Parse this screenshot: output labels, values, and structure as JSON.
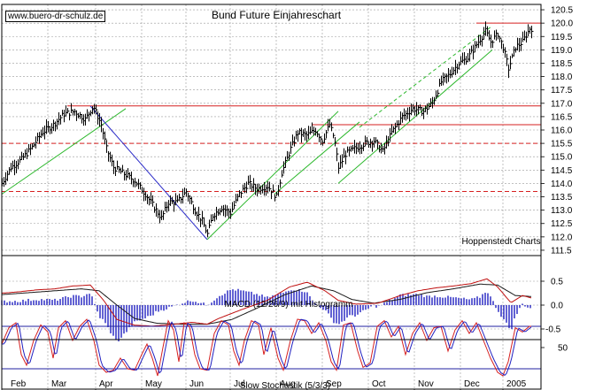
{
  "watermark": "www.buero-dr-schulz.de",
  "colors": {
    "price": "#000000",
    "trendline": "#2db82d",
    "downtrend": "#2a2ac8",
    "resistance": "#d62020",
    "macd": "#c01010",
    "signal": "#1a1a1a",
    "histogram": "#2020c0",
    "stoch_k": "#d62020",
    "stoch_d": "#2020c0",
    "band": "#2020a0",
    "grid": "#9a9a9a"
  },
  "chart_data": [
    {
      "type": "line",
      "title": "Bund Future Einjahreschart",
      "annotation": "Hoppenstedt Charts",
      "xlabel": "",
      "ylabel": "",
      "x_labels": [
        "Feb",
        "Mar",
        "Apr",
        "May",
        "Jun",
        "Jul",
        "Aug",
        "Sep",
        "Oct",
        "Nov",
        "Dec",
        "2005"
      ],
      "y_ticks": [
        111.5,
        112.0,
        112.5,
        113.0,
        113.5,
        114.0,
        114.5,
        115.0,
        115.5,
        116.0,
        116.5,
        117.0,
        117.5,
        118.0,
        118.5,
        119.0,
        119.5,
        120.0,
        120.5
      ],
      "ylim": [
        111.3,
        120.7
      ],
      "axis_side": "right",
      "grid": true,
      "price_anchors": [
        [
          0,
          114.0
        ],
        [
          10,
          114.6
        ],
        [
          22,
          114.9
        ],
        [
          35,
          115.4
        ],
        [
          45,
          115.9
        ],
        [
          58,
          116.2
        ],
        [
          70,
          116.6
        ],
        [
          82,
          116.7
        ],
        [
          94,
          116.4
        ],
        [
          103,
          116.9
        ],
        [
          112,
          116.2
        ],
        [
          118,
          115.3
        ],
        [
          126,
          114.6
        ],
        [
          136,
          114.4
        ],
        [
          150,
          114.1
        ],
        [
          162,
          113.6
        ],
        [
          172,
          113.1
        ],
        [
          180,
          112.7
        ],
        [
          188,
          113.3
        ],
        [
          198,
          113.3
        ],
        [
          208,
          113.7
        ],
        [
          218,
          113.0
        ],
        [
          226,
          112.6
        ],
        [
          232,
          112.1
        ],
        [
          238,
          112.8
        ],
        [
          248,
          113.1
        ],
        [
          258,
          112.9
        ],
        [
          268,
          113.6
        ],
        [
          278,
          114.0
        ],
        [
          288,
          113.8
        ],
        [
          300,
          113.9
        ],
        [
          310,
          113.5
        ],
        [
          316,
          114.4
        ],
        [
          326,
          115.3
        ],
        [
          334,
          115.9
        ],
        [
          344,
          115.8
        ],
        [
          354,
          116.0
        ],
        [
          362,
          115.6
        ],
        [
          370,
          116.2
        ],
        [
          375,
          115.7
        ],
        [
          380,
          114.6
        ],
        [
          388,
          115.1
        ],
        [
          398,
          115.3
        ],
        [
          410,
          115.5
        ],
        [
          420,
          115.6
        ],
        [
          430,
          115.2
        ],
        [
          440,
          115.9
        ],
        [
          452,
          116.5
        ],
        [
          464,
          116.8
        ],
        [
          476,
          116.7
        ],
        [
          486,
          117.0
        ],
        [
          496,
          117.8
        ],
        [
          506,
          118.1
        ],
        [
          516,
          118.5
        ],
        [
          526,
          118.7
        ],
        [
          536,
          119.2
        ],
        [
          546,
          119.7
        ],
        [
          552,
          119.3
        ],
        [
          560,
          119.6
        ],
        [
          566,
          119.1
        ],
        [
          572,
          118.3
        ],
        [
          580,
          119.1
        ],
        [
          588,
          119.3
        ],
        [
          596,
          119.8
        ]
      ],
      "trendlines": [
        {
          "kind": "support",
          "from": [
            0,
            113.6
          ],
          "to": [
            140,
            116.8
          ]
        },
        {
          "kind": "downtrend",
          "from": [
            100,
            116.9
          ],
          "to": [
            232,
            111.9
          ]
        },
        {
          "kind": "channel",
          "from": [
            232,
            111.9
          ],
          "to": [
            380,
            116.7
          ]
        },
        {
          "kind": "channel",
          "from": [
            308,
            113.6
          ],
          "to": [
            404,
            116.3
          ]
        },
        {
          "kind": "channel",
          "from": [
            380,
            114.0
          ],
          "to": [
            554,
            119.0
          ]
        },
        {
          "kind": "dashed",
          "from": [
            404,
            116.1
          ],
          "to": [
            554,
            119.9
          ]
        }
      ],
      "horizontal_levels": [
        {
          "y": 116.9,
          "x_start": 74,
          "style": "solid"
        },
        {
          "y": 116.2,
          "x_start": 350,
          "style": "solid"
        },
        {
          "y": 115.5,
          "x_start": 0,
          "style": "dashed"
        },
        {
          "y": 113.7,
          "x_start": 0,
          "style": "dashed"
        },
        {
          "y": 120.0,
          "x_start": 536,
          "style": "solid"
        }
      ]
    },
    {
      "type": "line",
      "title": "MACD (12/26/9) mit Histogramm",
      "y_ticks": [
        0.5,
        0.0,
        -0.5
      ],
      "ylim": [
        -0.75,
        0.75
      ],
      "macd_anchors": [
        [
          0,
          0.25
        ],
        [
          20,
          0.28
        ],
        [
          40,
          0.32
        ],
        [
          60,
          0.34
        ],
        [
          80,
          0.4
        ],
        [
          100,
          0.42
        ],
        [
          115,
          0.1
        ],
        [
          130,
          -0.3
        ],
        [
          150,
          -0.42
        ],
        [
          170,
          -0.44
        ],
        [
          195,
          -0.4
        ],
        [
          215,
          -0.36
        ],
        [
          232,
          -0.4
        ],
        [
          245,
          -0.28
        ],
        [
          270,
          -0.1
        ],
        [
          300,
          0.1
        ],
        [
          325,
          0.38
        ],
        [
          345,
          0.48
        ],
        [
          365,
          0.3
        ],
        [
          380,
          0.1
        ],
        [
          400,
          0.02
        ],
        [
          425,
          0.04
        ],
        [
          450,
          0.2
        ],
        [
          470,
          0.3
        ],
        [
          490,
          0.36
        ],
        [
          510,
          0.4
        ],
        [
          530,
          0.45
        ],
        [
          548,
          0.55
        ],
        [
          560,
          0.38
        ],
        [
          575,
          0.05
        ],
        [
          588,
          0.2
        ],
        [
          598,
          0.15
        ]
      ],
      "signal_anchors": [
        [
          0,
          0.22
        ],
        [
          30,
          0.26
        ],
        [
          60,
          0.3
        ],
        [
          90,
          0.34
        ],
        [
          110,
          0.3
        ],
        [
          130,
          0.0
        ],
        [
          150,
          -0.28
        ],
        [
          175,
          -0.38
        ],
        [
          205,
          -0.4
        ],
        [
          232,
          -0.4
        ],
        [
          260,
          -0.3
        ],
        [
          290,
          -0.05
        ],
        [
          320,
          0.22
        ],
        [
          350,
          0.4
        ],
        [
          375,
          0.3
        ],
        [
          395,
          0.12
        ],
        [
          420,
          0.04
        ],
        [
          450,
          0.12
        ],
        [
          480,
          0.26
        ],
        [
          510,
          0.34
        ],
        [
          540,
          0.44
        ],
        [
          560,
          0.42
        ],
        [
          580,
          0.2
        ],
        [
          598,
          0.18
        ]
      ]
    },
    {
      "type": "line",
      "title": "Slow Stochastik (5/3/3)",
      "y_ticks": [
        50
      ],
      "ylim": [
        0,
        100
      ],
      "bands": [
        80,
        20
      ],
      "stoch_anchors": [
        [
          0,
          55
        ],
        [
          8,
          78
        ],
        [
          16,
          85
        ],
        [
          22,
          40
        ],
        [
          28,
          25
        ],
        [
          36,
          60
        ],
        [
          44,
          82
        ],
        [
          52,
          72
        ],
        [
          58,
          35
        ],
        [
          64,
          78
        ],
        [
          72,
          88
        ],
        [
          80,
          60
        ],
        [
          88,
          80
        ],
        [
          96,
          90
        ],
        [
          104,
          60
        ],
        [
          110,
          25
        ],
        [
          118,
          15
        ],
        [
          126,
          18
        ],
        [
          134,
          35
        ],
        [
          142,
          20
        ],
        [
          150,
          18
        ],
        [
          158,
          40
        ],
        [
          164,
          55
        ],
        [
          170,
          35
        ],
        [
          176,
          10
        ],
        [
          182,
          50
        ],
        [
          188,
          88
        ],
        [
          194,
          75
        ],
        [
          200,
          30
        ],
        [
          206,
          85
        ],
        [
          212,
          80
        ],
        [
          218,
          40
        ],
        [
          224,
          20
        ],
        [
          232,
          18
        ],
        [
          240,
          70
        ],
        [
          248,
          88
        ],
        [
          256,
          82
        ],
        [
          262,
          45
        ],
        [
          268,
          25
        ],
        [
          274,
          60
        ],
        [
          282,
          88
        ],
        [
          290,
          82
        ],
        [
          296,
          40
        ],
        [
          304,
          78
        ],
        [
          312,
          35
        ],
        [
          318,
          18
        ],
        [
          326,
          60
        ],
        [
          334,
          90
        ],
        [
          342,
          88
        ],
        [
          350,
          70
        ],
        [
          358,
          85
        ],
        [
          366,
          60
        ],
        [
          372,
          30
        ],
        [
          378,
          18
        ],
        [
          386,
          82
        ],
        [
          394,
          85
        ],
        [
          402,
          45
        ],
        [
          408,
          22
        ],
        [
          416,
          28
        ],
        [
          424,
          80
        ],
        [
          432,
          88
        ],
        [
          440,
          65
        ],
        [
          448,
          80
        ],
        [
          456,
          40
        ],
        [
          464,
          70
        ],
        [
          472,
          85
        ],
        [
          480,
          60
        ],
        [
          488,
          78
        ],
        [
          496,
          80
        ],
        [
          504,
          45
        ],
        [
          512,
          75
        ],
        [
          520,
          88
        ],
        [
          528,
          70
        ],
        [
          536,
          85
        ],
        [
          544,
          60
        ],
        [
          552,
          35
        ],
        [
          560,
          15
        ],
        [
          566,
          10
        ],
        [
          572,
          30
        ],
        [
          580,
          78
        ],
        [
          588,
          72
        ],
        [
          596,
          80
        ]
      ]
    }
  ]
}
